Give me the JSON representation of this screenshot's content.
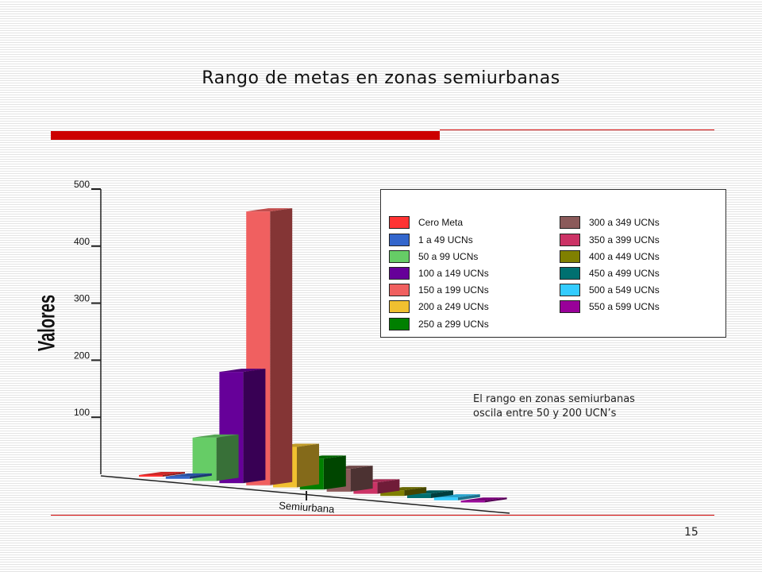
{
  "slide": {
    "title": "Rango de metas en zonas semiurbanas",
    "page_number": "15",
    "annotation_line1": "El rango en zonas semiurbanas",
    "annotation_line2": "oscila entre 50 y 200 UCN’s"
  },
  "chart_data": {
    "type": "bar",
    "title": "",
    "xlabel": "Semiurbana",
    "ylabel": "Valores",
    "ylim": [
      0,
      500
    ],
    "y_ticks": [
      "100",
      "200",
      "300",
      "400",
      "500"
    ],
    "categories": [
      "Semiurbana"
    ],
    "grid": false,
    "legend_position": "top-right",
    "series": [
      {
        "name": "Cero Meta",
        "values": [
          2
        ],
        "color": "#ff3333"
      },
      {
        "name": "1 a 49 UCNs",
        "values": [
          4
        ],
        "color": "#3366cc"
      },
      {
        "name": "50 a 99 UCNs",
        "values": [
          76
        ],
        "color": "#66cc66"
      },
      {
        "name": "100 a 149 UCNs",
        "values": [
          195
        ],
        "color": "#660099"
      },
      {
        "name": "150 a 199 UCNs",
        "values": [
          480
        ],
        "color": "#f06060"
      },
      {
        "name": "200 a 249 UCNs",
        "values": [
          71
        ],
        "color": "#f0c030"
      },
      {
        "name": "250 a 299 UCNs",
        "values": [
          54
        ],
        "color": "#008000"
      },
      {
        "name": "300 a 349 UCNs",
        "values": [
          40
        ],
        "color": "#8b5a5a"
      },
      {
        "name": "350 a 399 UCNs",
        "values": [
          20
        ],
        "color": "#cc3366"
      },
      {
        "name": "400 a 449 UCNs",
        "values": [
          10
        ],
        "color": "#808000"
      },
      {
        "name": "450 a 499 UCNs",
        "values": [
          8
        ],
        "color": "#007070"
      },
      {
        "name": "500 a 549 UCNs",
        "values": [
          5
        ],
        "color": "#33ccff"
      },
      {
        "name": "550 a 599 UCNs",
        "values": [
          3
        ],
        "color": "#990099"
      }
    ]
  }
}
